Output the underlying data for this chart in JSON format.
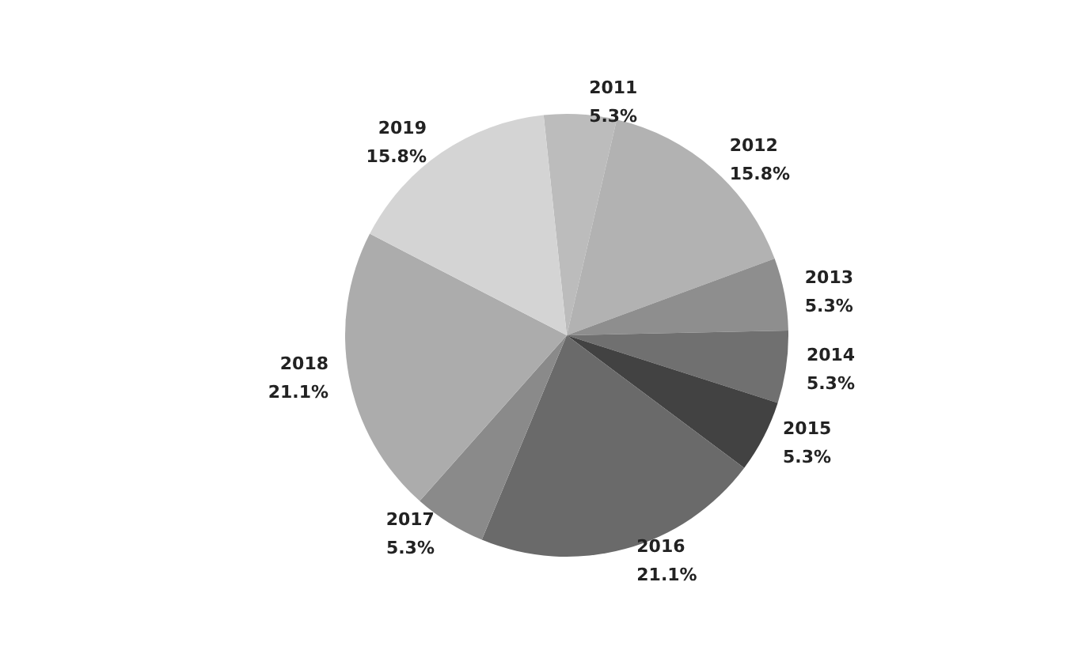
{
  "chart_data": {
    "type": "pie",
    "categories": [
      "2011",
      "2012",
      "2013",
      "2014",
      "2015",
      "2016",
      "2017",
      "2018",
      "2019"
    ],
    "values": [
      5.3,
      15.8,
      5.3,
      5.3,
      5.3,
      21.1,
      5.3,
      21.1,
      15.8
    ],
    "value_labels": [
      "5.3%",
      "15.8%",
      "5.3%",
      "5.3%",
      "5.3%",
      "21.1%",
      "5.3%",
      "21.1%",
      "15.8%"
    ],
    "colors": [
      "#bcbcbc",
      "#b2b2b2",
      "#8e8e8e",
      "#707070",
      "#424242",
      "#6a6a6a",
      "#8a8a8a",
      "#acacac",
      "#d4d4d4"
    ]
  }
}
